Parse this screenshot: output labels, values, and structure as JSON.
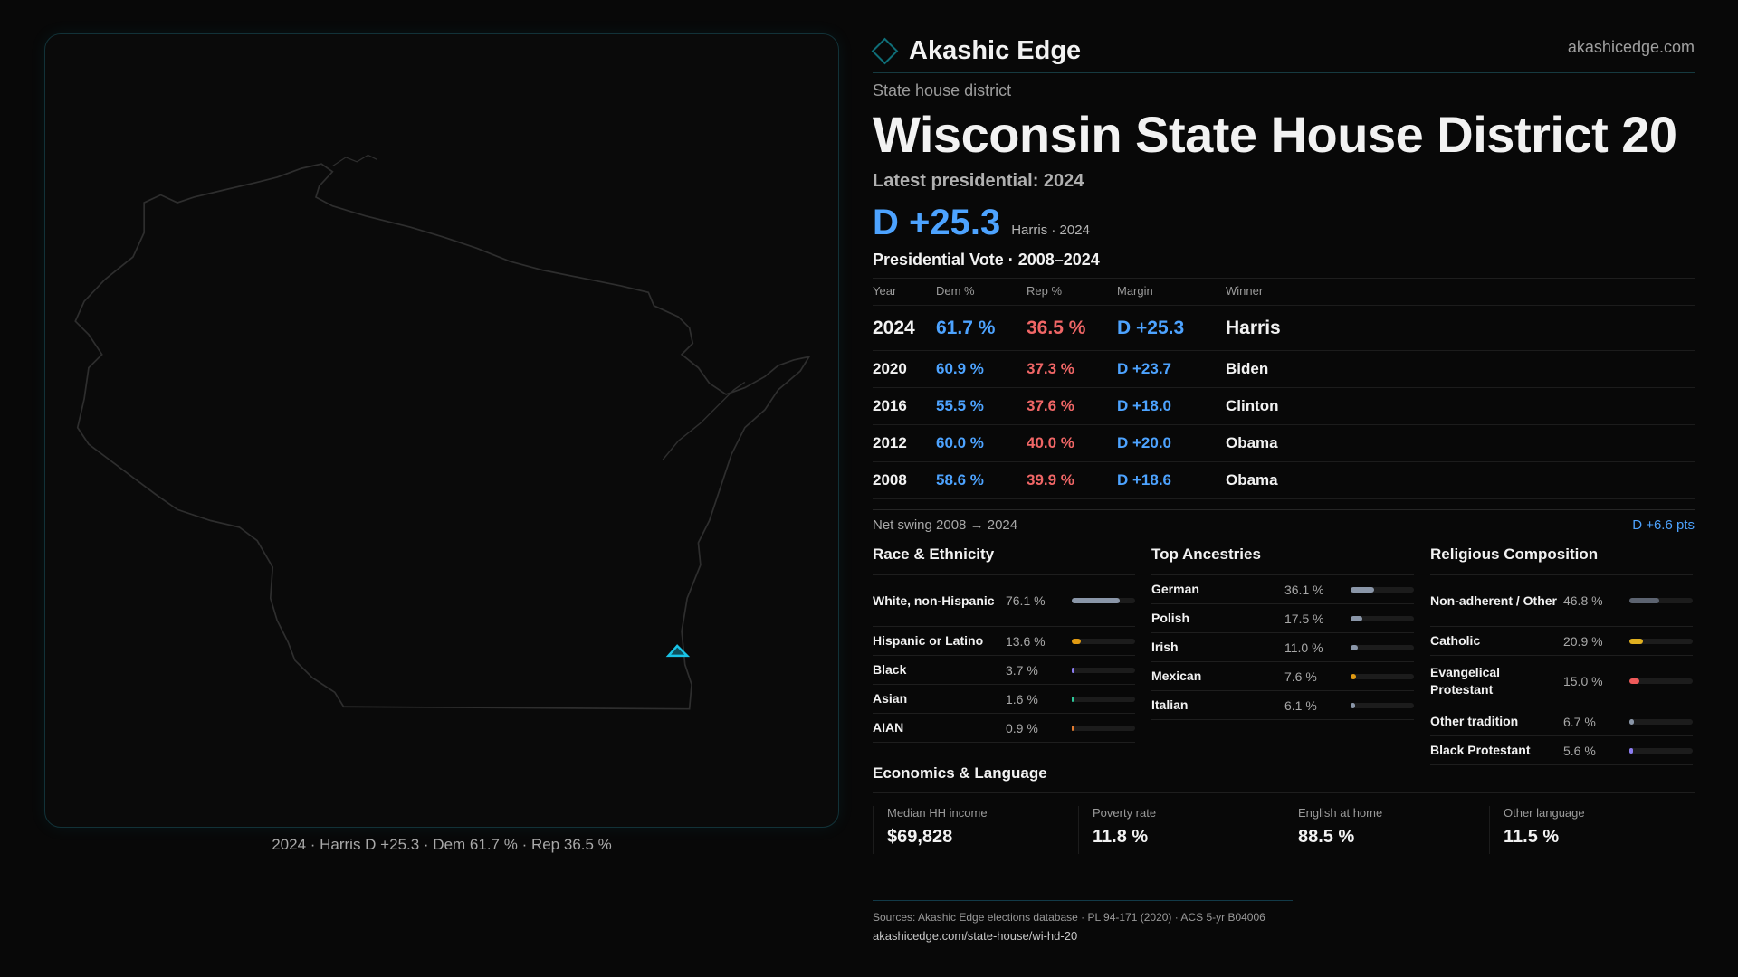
{
  "brand": {
    "name": "Akashic Edge",
    "site": "akashicedge.com",
    "accent": "#0f6e78"
  },
  "kicker": "State house district",
  "title": "Wisconsin State House District 20",
  "latest_label": "Latest presidential: 2024",
  "latest": {
    "margin": "D +25.3",
    "sub": "Harris · 2024"
  },
  "map_caption": "2024 · Harris D +25.3 · Dem 61.7 % · Rep 36.5 %",
  "vote_table": {
    "title": "Presidential Vote · 2008–2024",
    "headers": [
      "Year",
      "Dem %",
      "Rep %",
      "Margin",
      "Winner"
    ],
    "rows": [
      {
        "year": "2024",
        "dem": "61.7 %",
        "rep": "36.5 %",
        "margin": "D +25.3",
        "winner": "Harris"
      },
      {
        "year": "2020",
        "dem": "60.9 %",
        "rep": "37.3 %",
        "margin": "D +23.7",
        "winner": "Biden"
      },
      {
        "year": "2016",
        "dem": "55.5 %",
        "rep": "37.6 %",
        "margin": "D +18.0",
        "winner": "Clinton"
      },
      {
        "year": "2012",
        "dem": "60.0 %",
        "rep": "40.0 %",
        "margin": "D +20.0",
        "winner": "Obama"
      },
      {
        "year": "2008",
        "dem": "58.6 %",
        "rep": "39.9 %",
        "margin": "D +18.6",
        "winner": "Obama"
      }
    ]
  },
  "swing": {
    "label": "Net swing 2008 → 2024",
    "value": "D +6.6 pts"
  },
  "sections": [
    {
      "title": "Race & Ethnicity",
      "items": [
        {
          "label": "White, non-Hispanic",
          "value": "76.1 %",
          "pct": 76.1,
          "color": "#8a96a8"
        },
        {
          "label": "Hispanic or Latino",
          "value": "13.6 %",
          "pct": 13.6,
          "color": "#e09a12"
        },
        {
          "label": "Black",
          "value": "3.7 %",
          "pct": 3.7,
          "color": "#8b7cf0"
        },
        {
          "label": "Asian",
          "value": "1.6 %",
          "pct": 1.6,
          "color": "#2ec79a"
        },
        {
          "label": "AIAN",
          "value": "0.9 %",
          "pct": 0.9,
          "color": "#e07a30"
        }
      ]
    },
    {
      "title": "Top Ancestries",
      "items": [
        {
          "label": "German",
          "value": "36.1 %",
          "pct": 36.1,
          "color": "#8a96a8"
        },
        {
          "label": "Polish",
          "value": "17.5 %",
          "pct": 17.5,
          "color": "#8a96a8"
        },
        {
          "label": "Irish",
          "value": "11.0 %",
          "pct": 11.0,
          "color": "#8a96a8"
        },
        {
          "label": "Mexican",
          "value": "7.6 %",
          "pct": 7.6,
          "color": "#e09a12"
        },
        {
          "label": "Italian",
          "value": "6.1 %",
          "pct": 6.1,
          "color": "#8a96a8"
        }
      ]
    },
    {
      "title": "Religious Composition",
      "items": [
        {
          "label": "Non-adherent / Other",
          "value": "46.8 %",
          "pct": 46.8,
          "color": "#5c6370"
        },
        {
          "label": "Catholic",
          "value": "20.9 %",
          "pct": 20.9,
          "color": "#e0b020"
        },
        {
          "label": "Evangelical Protestant",
          "value": "15.0 %",
          "pct": 15.0,
          "color": "#ef5a5a"
        },
        {
          "label": "Other tradition",
          "value": "6.7 %",
          "pct": 6.7,
          "color": "#8a96a8"
        },
        {
          "label": "Black Protestant",
          "value": "5.6 %",
          "pct": 5.6,
          "color": "#8b7cf0"
        }
      ]
    }
  ],
  "economics": {
    "title": "Economics & Language",
    "cards": [
      {
        "label": "Median HH income",
        "value": "$69,828"
      },
      {
        "label": "Poverty rate",
        "value": "11.8 %"
      },
      {
        "label": "English at home",
        "value": "88.5 %"
      },
      {
        "label": "Other language",
        "value": "11.5 %"
      }
    ]
  },
  "sources": {
    "text": "Sources: Akashic Edge elections database · PL 94-171 (2020) · ACS 5-yr B04006",
    "url": "akashicedge.com/state-house/wi-hd-20"
  },
  "colors": {
    "dem": "#4da3ff",
    "rep": "#f06666",
    "district": "#19c3e6"
  }
}
